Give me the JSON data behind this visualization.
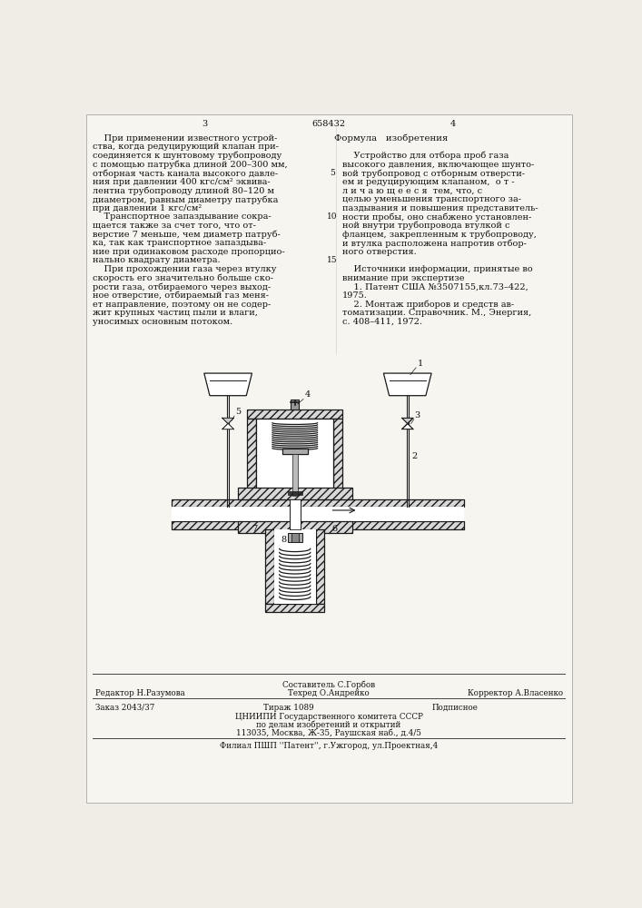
{
  "bg_color": "#f0ede6",
  "page_color": "#f7f5f0",
  "text_color": "#111111",
  "page_number_left": "3",
  "patent_number": "658432",
  "page_number_right": "4",
  "left_column_text": [
    "    При применении известного устрой-",
    "ства, когда редуцирующий клапан при-",
    "соединяется к шунтовому трубопроводу",
    "с помощью патрубка длиной 200–300 мм,",
    "отборная часть канала высокого давле-",
    "ния при давлении 400 кгс/см² эквива-",
    "лентна трубопроводу длиной 80–120 м",
    "диаметром, равным диаметру патрубка",
    "при давлении 1 кгс/см²",
    "    Транспортное запаздывание сокра-",
    "щается также за счет того, что от-",
    "верстие 7 меньше, чем диаметр патруб-",
    "ка, так как транспортное запаздыва-",
    "ние при одинаковом расходе пропорцио-",
    "нально квадрату диаметра.",
    "    При прохождении газа через втулку",
    "скорость его значительно больше ско-",
    "рости газа, отбираемого через выход-",
    "ное отверстие, отбираемый газ меня-",
    "ет направление, поэтому он не содер-",
    "жит крупных частиц пыли и влаги,",
    "уносимых основным потоком."
  ],
  "right_column_header": "Формула   изобретения",
  "right_column_text": [
    "    Устройство для отбора проб газа",
    "высокого давления, включающее шунто-",
    "вой трубопровод с отборным отверсти-",
    "ем и редуцирующим клапаном,  о т -",
    "л и ч а ю щ е е с я  тем, что, с",
    "целью уменьшения транспортного за-",
    "паздывания и повышения представитель-",
    "ности пробы, оно снабжено установлен-",
    "ной внутри трубопровода втулкой с",
    "фланцем, закрепленным к трубопроводу,",
    "и втулка расположена напротив отбор-",
    "ного отверстия.",
    "",
    "    Источники информации, принятые во",
    "внимание при экспертизе",
    "    1. Патент США №3507155,кл.73–422,",
    "1975.",
    "    2. Монтаж приборов и средств ав-",
    "томатизации. Справочник. М., Энергия,",
    "с. 408–411, 1972."
  ],
  "footer_sestavitel": "Составитель С.Горбов",
  "footer_editor": "Редактор Н.Разумова",
  "footer_tekhred": "Техред О.Андрейко",
  "footer_korrektor": "Корректор А.Власенко",
  "footer_order": "Заказ 2043/37",
  "footer_tirazh": "Тираж 1089",
  "footer_podpisnoe": "Подписное",
  "footer_org1": "ЦНИИПИ Государственного комитета СССР",
  "footer_org2": "по делам изобретений и открытий",
  "footer_org3": "113035, Москва, Ж-35, Раушская наб., д.4/5",
  "footer_filial": "Филиал ПШП ''Патент'', г.Ужгород, ул.Проектная,4"
}
